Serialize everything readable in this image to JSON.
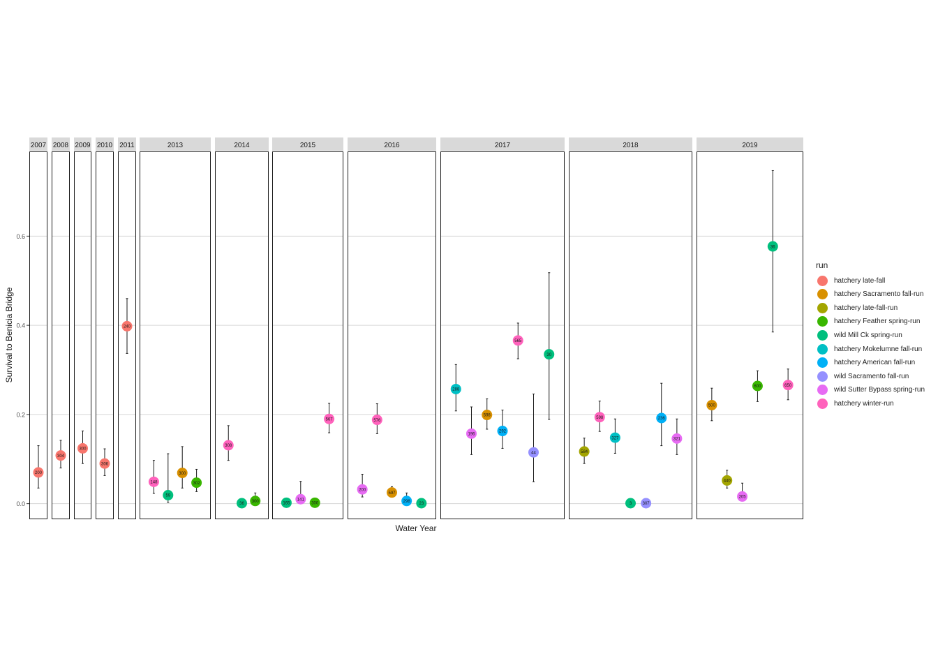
{
  "chart_data": {
    "type": "scatter",
    "xlabel": "Water Year",
    "ylabel": "Survival to Benicia Bridge",
    "ylim": [
      -0.035,
      0.79
    ],
    "yticks": [
      0.0,
      0.2,
      0.4,
      0.6
    ],
    "ytick_labels": [
      "0.0",
      "0.2",
      "0.4",
      "0.6"
    ],
    "grid": true,
    "legend": {
      "title": "run",
      "position": "right"
    },
    "runs": [
      {
        "name": "hatchery late-fall",
        "color": "#F8766D"
      },
      {
        "name": "hatchery Sacramento fall-run",
        "color": "#D89000"
      },
      {
        "name": "hatchery late-fall-run",
        "color": "#A3A500"
      },
      {
        "name": "hatchery Feather spring-run",
        "color": "#39B600"
      },
      {
        "name": "wild Mill Ck spring-run",
        "color": "#00BF7D"
      },
      {
        "name": "hatchery Mokelumne fall-run",
        "color": "#00BFC4"
      },
      {
        "name": "hatchery American fall-run",
        "color": "#00B0F6"
      },
      {
        "name": "wild Sacramento fall-run",
        "color": "#9590FF"
      },
      {
        "name": "wild Sutter Bypass spring-run",
        "color": "#E76BF3"
      },
      {
        "name": "hatchery winter-run",
        "color": "#FF62BC"
      }
    ],
    "panels": [
      {
        "year": "2007",
        "points": [
          {
            "run": "hatchery late-fall",
            "y": 0.07,
            "lo": 0.035,
            "hi": 0.13,
            "n": "200"
          }
        ]
      },
      {
        "year": "2008",
        "points": [
          {
            "run": "hatchery late-fall",
            "y": 0.108,
            "lo": 0.08,
            "hi": 0.142,
            "n": "304"
          }
        ]
      },
      {
        "year": "2009",
        "points": [
          {
            "run": "hatchery late-fall",
            "y": 0.124,
            "lo": 0.09,
            "hi": 0.163,
            "n": "300"
          }
        ]
      },
      {
        "year": "2010",
        "points": [
          {
            "run": "hatchery late-fall",
            "y": 0.09,
            "lo": 0.063,
            "hi": 0.123,
            "n": "306"
          }
        ]
      },
      {
        "year": "2011",
        "points": [
          {
            "run": "hatchery late-fall",
            "y": 0.398,
            "lo": 0.337,
            "hi": 0.46,
            "n": "240"
          }
        ]
      },
      {
        "year": "2013",
        "points": [
          {
            "run": "hatchery winter-run",
            "y": 0.049,
            "lo": 0.023,
            "hi": 0.097,
            "n": "148"
          },
          {
            "run": "wild Mill Ck spring-run",
            "y": 0.019,
            "lo": 0.003,
            "hi": 0.112,
            "n": "59"
          },
          {
            "run": "hatchery Sacramento fall-run",
            "y": 0.069,
            "lo": 0.035,
            "hi": 0.128,
            "n": "300"
          },
          {
            "run": "hatchery Feather spring-run",
            "y": 0.047,
            "lo": 0.027,
            "hi": 0.077,
            "n": "302"
          }
        ]
      },
      {
        "year": "2014",
        "points": [
          {
            "run": "hatchery winter-run",
            "y": 0.131,
            "lo": 0.097,
            "hi": 0.175,
            "n": "308"
          },
          {
            "run": "wild Mill Ck spring-run",
            "y": 0.001,
            "lo": 0.0,
            "hi": 0.003,
            "n": "36"
          },
          {
            "run": "hatchery Feather spring-run",
            "y": 0.006,
            "lo": 0.002,
            "hi": 0.024,
            "n": "300"
          }
        ]
      },
      {
        "year": "2015",
        "points": [
          {
            "run": "wild Mill Ck spring-run",
            "y": 0.002,
            "lo": 0.0,
            "hi": 0.004,
            "n": "165"
          },
          {
            "run": "wild Sutter Bypass spring-run",
            "y": 0.01,
            "lo": 0.002,
            "hi": 0.05,
            "n": "141"
          },
          {
            "run": "hatchery Feather spring-run",
            "y": 0.002,
            "lo": 0.0,
            "hi": 0.004,
            "n": "300"
          },
          {
            "run": "hatchery winter-run",
            "y": 0.19,
            "lo": 0.159,
            "hi": 0.225,
            "n": "567"
          }
        ]
      },
      {
        "year": "2016",
        "points": [
          {
            "run": "wild Sutter Bypass spring-run",
            "y": 0.032,
            "lo": 0.015,
            "hi": 0.066,
            "n": "200"
          },
          {
            "run": "hatchery winter-run",
            "y": 0.188,
            "lo": 0.157,
            "hi": 0.224,
            "n": "576"
          },
          {
            "run": "hatchery Sacramento fall-run",
            "y": 0.025,
            "lo": 0.016,
            "hi": 0.038,
            "n": "597"
          },
          {
            "run": "hatchery American fall-run",
            "y": 0.006,
            "lo": 0.002,
            "hi": 0.024,
            "n": "298"
          },
          {
            "run": "wild Mill Ck spring-run",
            "y": 0.001,
            "lo": 0.0,
            "hi": 0.003,
            "n": "23"
          }
        ]
      },
      {
        "year": "2017",
        "points": [
          {
            "run": "hatchery Mokelumne fall-run",
            "y": 0.257,
            "lo": 0.208,
            "hi": 0.312,
            "n": "288"
          },
          {
            "run": "wild Sutter Bypass spring-run",
            "y": 0.157,
            "lo": 0.11,
            "hi": 0.217,
            "n": "196"
          },
          {
            "run": "hatchery Sacramento fall-run",
            "y": 0.199,
            "lo": 0.167,
            "hi": 0.235,
            "n": "598"
          },
          {
            "run": "hatchery American fall-run",
            "y": 0.163,
            "lo": 0.124,
            "hi": 0.21,
            "n": "292"
          },
          {
            "run": "hatchery winter-run",
            "y": 0.366,
            "lo": 0.325,
            "hi": 0.405,
            "n": "565"
          },
          {
            "run": "wild Sacramento fall-run",
            "y": 0.115,
            "lo": 0.049,
            "hi": 0.246,
            "n": "44"
          },
          {
            "run": "wild Mill Ck spring-run",
            "y": 0.335,
            "lo": 0.189,
            "hi": 0.518,
            "n": "30"
          }
        ]
      },
      {
        "year": "2018",
        "points": [
          {
            "run": "hatchery late-fall-run",
            "y": 0.117,
            "lo": 0.09,
            "hi": 0.147,
            "n": "584"
          },
          {
            "run": "hatchery winter-run",
            "y": 0.194,
            "lo": 0.162,
            "hi": 0.23,
            "n": "598"
          },
          {
            "run": "hatchery Mokelumne fall-run",
            "y": 0.148,
            "lo": 0.113,
            "hi": 0.19,
            "n": "327"
          },
          {
            "run": "wild Mill Ck spring-run",
            "y": 0.001,
            "lo": 0.0,
            "hi": 0.002,
            "n": "3"
          },
          {
            "run": "wild Sacramento fall-run",
            "y": 0.001,
            "lo": 0.0,
            "hi": 0.002,
            "n": "307"
          },
          {
            "run": "hatchery American fall-run",
            "y": 0.192,
            "lo": 0.13,
            "hi": 0.27,
            "n": "236"
          },
          {
            "run": "wild Sutter Bypass spring-run",
            "y": 0.146,
            "lo": 0.11,
            "hi": 0.19,
            "n": "321"
          }
        ]
      },
      {
        "year": "2019",
        "points": [
          {
            "run": "hatchery Sacramento fall-run",
            "y": 0.221,
            "lo": 0.186,
            "hi": 0.259,
            "n": "500"
          },
          {
            "run": "hatchery late-fall-run",
            "y": 0.052,
            "lo": 0.035,
            "hi": 0.075,
            "n": "440"
          },
          {
            "run": "wild Sutter Bypass spring-run",
            "y": 0.016,
            "lo": 0.006,
            "hi": 0.046,
            "n": "205"
          },
          {
            "run": "hatchery Feather spring-run",
            "y": 0.264,
            "lo": 0.229,
            "hi": 0.298,
            "n": "600"
          },
          {
            "run": "wild Mill Ck spring-run",
            "y": 0.577,
            "lo": 0.385,
            "hi": 0.747,
            "n": "36"
          },
          {
            "run": "hatchery winter-run",
            "y": 0.266,
            "lo": 0.233,
            "hi": 0.302,
            "n": "650"
          }
        ]
      }
    ]
  }
}
